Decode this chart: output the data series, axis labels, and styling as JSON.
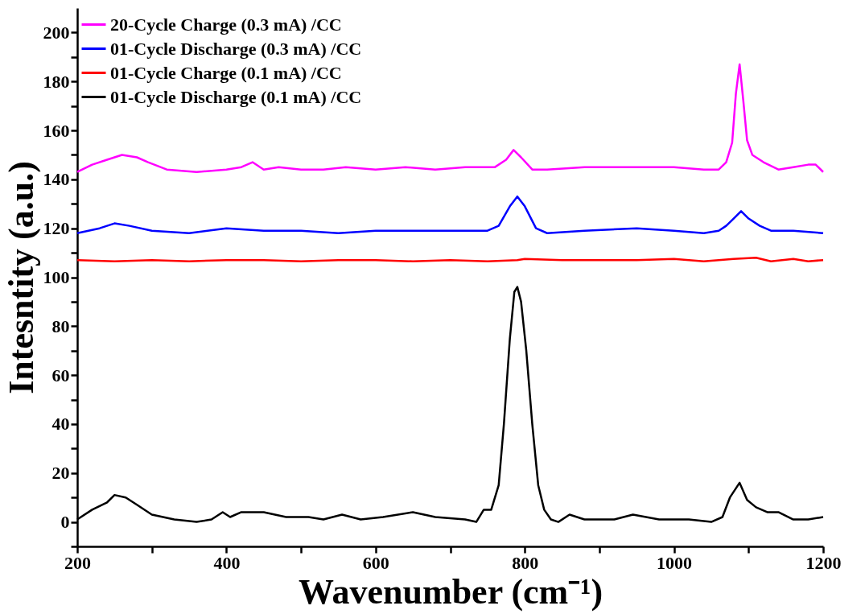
{
  "chart_data": {
    "type": "line",
    "xlabel": "Wavenumber (cm⁻¹)",
    "ylabel": "Intesntity (a.u.)",
    "xlim": [
      200,
      1200
    ],
    "ylim": [
      -10,
      210
    ],
    "xticks": [
      200,
      {
        "value": 300,
        "label": null
      },
      400,
      {
        "value": 500,
        "label": null
      },
      600,
      {
        "value": 700,
        "label": null
      },
      800,
      {
        "value": 900,
        "label": null
      },
      1000,
      {
        "value": 1100,
        "label": null
      },
      1200
    ],
    "yticks": [
      {
        "value": -10,
        "label": null
      },
      0,
      {
        "value": 10,
        "label": null
      },
      20,
      {
        "value": 30,
        "label": null
      },
      40,
      {
        "value": 50,
        "label": null
      },
      60,
      {
        "value": 70,
        "label": null
      },
      80,
      {
        "value": 90,
        "label": null
      },
      100,
      {
        "value": 110,
        "label": null
      },
      120,
      {
        "value": 130,
        "label": null
      },
      140,
      {
        "value": 150,
        "label": null
      },
      160,
      {
        "value": 170,
        "label": null
      },
      180,
      {
        "value": 190,
        "label": null
      },
      200
    ],
    "grid": false,
    "legend": "top left",
    "line_style": "solid",
    "marker": "none",
    "series": [
      {
        "name": "20-Cycle Charge (0.3 mA) /CC",
        "color": "#ff00ff",
        "x": [
          200,
          220,
          240,
          260,
          280,
          295,
          320,
          360,
          400,
          420,
          435,
          450,
          470,
          500,
          530,
          560,
          600,
          640,
          680,
          720,
          760,
          775,
          785,
          795,
          810,
          830,
          880,
          940,
          1000,
          1040,
          1060,
          1070,
          1078,
          1083,
          1088,
          1093,
          1098,
          1105,
          1120,
          1140,
          1160,
          1180,
          1190,
          1200
        ],
        "values": [
          143,
          146,
          148,
          150,
          149,
          147,
          144,
          143,
          144,
          145,
          147,
          144,
          145,
          144,
          144,
          145,
          144,
          145,
          144,
          145,
          145,
          148,
          152,
          149,
          144,
          144,
          145,
          145,
          145,
          144,
          144,
          147,
          155,
          175,
          187,
          172,
          156,
          150,
          147,
          144,
          145,
          146,
          146,
          143
        ]
      },
      {
        "name": "01-Cycle Discharge (0.3 mA) /CC",
        "color": "#0000ff",
        "x": [
          200,
          230,
          250,
          270,
          300,
          350,
          400,
          450,
          500,
          550,
          600,
          650,
          700,
          750,
          765,
          780,
          790,
          800,
          815,
          830,
          880,
          950,
          1000,
          1040,
          1060,
          1070,
          1080,
          1090,
          1100,
          1115,
          1130,
          1160,
          1200
        ],
        "values": [
          118,
          120,
          122,
          121,
          119,
          118,
          120,
          119,
          119,
          118,
          119,
          119,
          119,
          119,
          121,
          129,
          133,
          129,
          120,
          118,
          119,
          120,
          119,
          118,
          119,
          121,
          124,
          127,
          124,
          121,
          119,
          119,
          118
        ]
      },
      {
        "name": "01-Cycle Charge (0.1 mA) /CC",
        "color": "#ff0000",
        "x": [
          200,
          250,
          300,
          350,
          400,
          450,
          500,
          550,
          600,
          650,
          700,
          750,
          790,
          800,
          850,
          900,
          950,
          1000,
          1040,
          1080,
          1110,
          1130,
          1160,
          1180,
          1200
        ],
        "values": [
          107,
          106.5,
          107,
          106.5,
          107,
          107,
          106.5,
          107,
          107,
          106.5,
          107,
          106.5,
          107,
          107.5,
          107,
          107,
          107,
          107.5,
          106.5,
          107.5,
          108,
          106.5,
          107.5,
          106.5,
          107
        ]
      },
      {
        "name": "01-Cycle Discharge (0.1 mA) /CC",
        "color": "#000000",
        "x": [
          200,
          220,
          240,
          250,
          265,
          280,
          300,
          330,
          360,
          380,
          395,
          405,
          420,
          450,
          480,
          510,
          530,
          555,
          580,
          610,
          650,
          680,
          720,
          735,
          745,
          755,
          765,
          772,
          780,
          786,
          790,
          795,
          802,
          810,
          818,
          826,
          835,
          845,
          860,
          880,
          920,
          945,
          980,
          1020,
          1050,
          1065,
          1075,
          1088,
          1098,
          1110,
          1125,
          1140,
          1160,
          1180,
          1200
        ],
        "values": [
          1,
          5,
          8,
          11,
          10,
          7,
          3,
          1,
          0,
          1,
          4,
          2,
          4,
          4,
          2,
          2,
          1,
          3,
          1,
          2,
          4,
          2,
          1,
          0,
          5,
          5,
          15,
          40,
          75,
          94,
          96,
          90,
          70,
          40,
          15,
          5,
          1,
          0,
          3,
          1,
          1,
          3,
          1,
          1,
          0,
          2,
          10,
          16,
          9,
          6,
          4,
          4,
          1,
          1,
          2
        ]
      }
    ]
  }
}
